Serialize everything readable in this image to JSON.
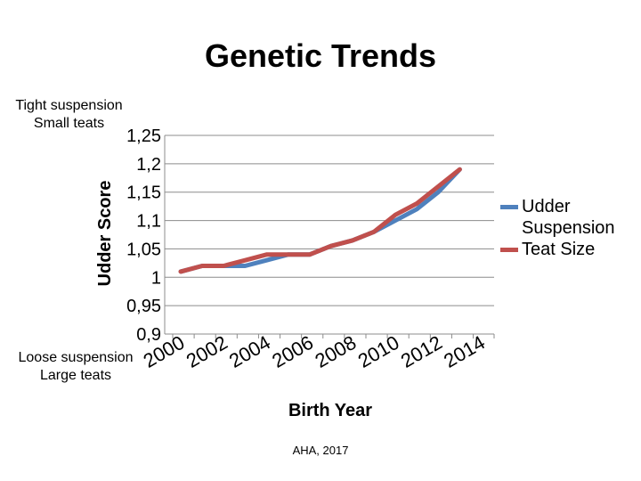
{
  "chart_data": {
    "type": "line",
    "title": "Genetic Trends",
    "xlabel": "Birth Year",
    "ylabel": "Udder Score",
    "ylim": [
      0.9,
      1.25
    ],
    "y_ticks": [
      "1,25",
      "1,2",
      "1,15",
      "1,1",
      "1,05",
      "1",
      "0,95",
      "0,9"
    ],
    "x_tick_labels": [
      "2000",
      "2002",
      "2004",
      "2006",
      "2008",
      "2010",
      "2012",
      "2014"
    ],
    "x": [
      2000,
      2001,
      2002,
      2003,
      2004,
      2005,
      2006,
      2007,
      2008,
      2009,
      2010,
      2011,
      2012,
      2013,
      2014
    ],
    "series": [
      {
        "name": "Udder Suspension",
        "color": "#4F81BD",
        "values": [
          1.01,
          1.02,
          1.02,
          1.02,
          1.03,
          1.04,
          1.04,
          1.055,
          1.065,
          1.08,
          1.1,
          1.12,
          1.15,
          1.19,
          null
        ]
      },
      {
        "name": "Teat Size",
        "color": "#C0504D",
        "values": [
          1.01,
          1.02,
          1.02,
          1.03,
          1.04,
          1.04,
          1.04,
          1.055,
          1.065,
          1.08,
          1.11,
          1.13,
          1.16,
          1.19,
          null
        ]
      }
    ],
    "grid": true,
    "legend_position": "right"
  },
  "annotations": {
    "top": "Tight suspension\nSmall teats",
    "bottom": "Loose suspension\nLarge teats"
  },
  "credit": "AHA, 2017"
}
